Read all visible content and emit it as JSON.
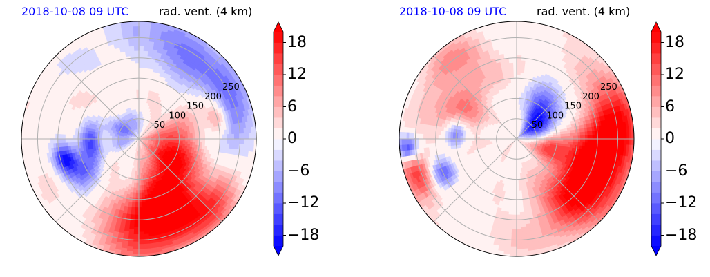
{
  "chart_data": [
    {
      "type": "heatmap",
      "subtype": "polar",
      "time_label": "2018-10-08 09 UTC",
      "title": "rad. vent. (4 km)",
      "radial_ticks": [
        50,
        100,
        150,
        200,
        250
      ],
      "r_max": 290,
      "angle_grid_deg": [
        0,
        45,
        90,
        135,
        180,
        225,
        270,
        315
      ],
      "colorbar": {
        "vmin": -20,
        "vmax": 20,
        "step": 2,
        "tick_values": [
          -18,
          -12,
          -6,
          0,
          6,
          12,
          18
        ],
        "tick_labels": [
          "−18",
          "−12",
          "−6",
          "0",
          "6",
          "12",
          "18"
        ],
        "cmap": "bwr",
        "extend": "both"
      },
      "features": [
        {
          "azimuth_deg": 110,
          "range": 90,
          "value": 18,
          "spread_az": 35,
          "spread_r": 55
        },
        {
          "azimuth_deg": 150,
          "range": 170,
          "value": 16,
          "spread_az": 20,
          "spread_r": 60
        },
        {
          "azimuth_deg": 175,
          "range": 220,
          "value": 18,
          "spread_az": 18,
          "spread_r": 60
        },
        {
          "azimuth_deg": 130,
          "range": 250,
          "value": 10,
          "spread_az": 15,
          "spread_r": 35
        },
        {
          "azimuth_deg": 25,
          "range": 250,
          "value": -8,
          "spread_az": 40,
          "spread_r": 45
        },
        {
          "azimuth_deg": 60,
          "range": 220,
          "value": -6,
          "spread_az": 30,
          "spread_r": 60
        },
        {
          "azimuth_deg": 95,
          "range": 200,
          "value": -4,
          "spread_az": 15,
          "spread_r": 50
        },
        {
          "azimuth_deg": 75,
          "range": 200,
          "value": 12,
          "spread_az": 10,
          "spread_r": 20
        },
        {
          "azimuth_deg": 300,
          "range": 40,
          "value": -12,
          "spread_az": 40,
          "spread_r": 25
        },
        {
          "azimuth_deg": 265,
          "range": 120,
          "value": -16,
          "spread_az": 15,
          "spread_r": 20
        },
        {
          "azimuth_deg": 255,
          "range": 190,
          "value": -18,
          "spread_az": 8,
          "spread_r": 20
        },
        {
          "azimuth_deg": 240,
          "range": 160,
          "value": -10,
          "spread_az": 12,
          "spread_r": 30
        }
      ]
    },
    {
      "type": "heatmap",
      "subtype": "polar",
      "time_label": "2018-10-08 09 UTC",
      "title": "rad. vent. (4 km)",
      "radial_ticks": [
        50,
        100,
        150,
        200,
        250
      ],
      "r_max": 290,
      "angle_grid_deg": [
        0,
        45,
        90,
        135,
        180,
        225,
        270,
        315
      ],
      "colorbar": {
        "vmin": -20,
        "vmax": 20,
        "step": 2,
        "tick_values": [
          -18,
          -12,
          -6,
          0,
          6,
          12,
          18
        ],
        "tick_labels": [
          "−18",
          "−12",
          "−6",
          "0",
          "6",
          "12",
          "18"
        ],
        "cmap": "bwr",
        "extend": "both"
      },
      "features": [
        {
          "azimuth_deg": 110,
          "range": 200,
          "value": 18,
          "spread_az": 25,
          "spread_r": 60
        },
        {
          "azimuth_deg": 80,
          "range": 250,
          "value": 14,
          "spread_az": 20,
          "spread_r": 45
        },
        {
          "azimuth_deg": 135,
          "range": 200,
          "value": 10,
          "spread_az": 25,
          "spread_r": 60
        },
        {
          "azimuth_deg": 100,
          "range": 80,
          "value": 14,
          "spread_az": 20,
          "spread_r": 30
        },
        {
          "azimuth_deg": 60,
          "range": 60,
          "value": -18,
          "spread_az": 25,
          "spread_r": 35
        },
        {
          "azimuth_deg": 40,
          "range": 110,
          "value": -10,
          "spread_az": 20,
          "spread_r": 40
        },
        {
          "azimuth_deg": 300,
          "range": 160,
          "value": 10,
          "spread_az": 25,
          "spread_r": 40
        },
        {
          "azimuth_deg": 275,
          "range": 150,
          "value": -14,
          "spread_az": 10,
          "spread_r": 20
        },
        {
          "azimuth_deg": 245,
          "range": 200,
          "value": -16,
          "spread_az": 8,
          "spread_r": 25
        },
        {
          "azimuth_deg": 250,
          "range": 260,
          "value": 16,
          "spread_az": 10,
          "spread_r": 30
        },
        {
          "azimuth_deg": 265,
          "range": 270,
          "value": -18,
          "spread_az": 5,
          "spread_r": 20
        },
        {
          "azimuth_deg": 320,
          "range": 250,
          "value": 8,
          "spread_az": 15,
          "spread_r": 30
        }
      ]
    }
  ]
}
